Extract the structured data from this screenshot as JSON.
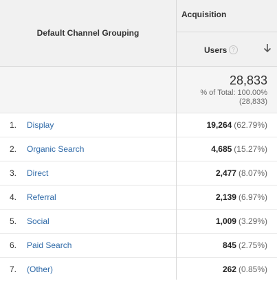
{
  "table": {
    "dimension_label": "Default Channel Grouping",
    "group_label": "Acquisition",
    "metric_label": "Users",
    "help_icon": "question-circle-icon",
    "sort_icon": "arrow-down-icon",
    "totals": {
      "value": "28,833",
      "pct": "% of Total: 100.00%",
      "abs": "(28,833)"
    },
    "rows": [
      {
        "num": "1.",
        "name": "Display",
        "users": "19,264",
        "share": "(62.79%)"
      },
      {
        "num": "2.",
        "name": "Organic Search",
        "users": "4,685",
        "share": "(15.27%)"
      },
      {
        "num": "3.",
        "name": "Direct",
        "users": "2,477",
        "share": "(8.07%)"
      },
      {
        "num": "4.",
        "name": "Referral",
        "users": "2,139",
        "share": "(6.97%)"
      },
      {
        "num": "5.",
        "name": "Social",
        "users": "1,009",
        "share": "(3.29%)"
      },
      {
        "num": "6.",
        "name": "Paid Search",
        "users": "845",
        "share": "(2.75%)"
      },
      {
        "num": "7.",
        "name": "(Other)",
        "users": "262",
        "share": "(0.85%)"
      }
    ]
  },
  "colors": {
    "link": "#2f6aa8",
    "header_bg": "#f1f1f1",
    "totals_bg": "#f5f5f5",
    "border": "#d8d8d8"
  }
}
